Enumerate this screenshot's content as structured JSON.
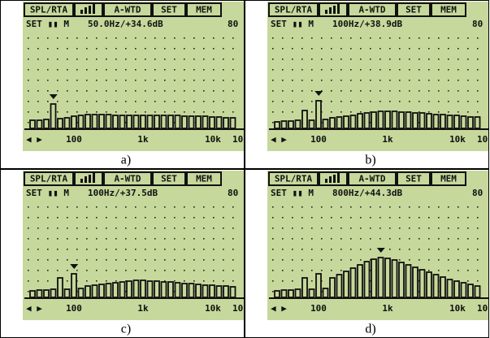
{
  "panels": [
    {
      "caption": "a)",
      "header": [
        "SPL/RTA",
        "A-WTD",
        "SET",
        "MEM"
      ],
      "status": "SET ▮▮ M",
      "readout": "50.0Hz/+34.6dB",
      "range": "80",
      "axis_labels": [
        "◀ ▶",
        "100",
        "1k",
        "10k",
        "10"
      ],
      "bands": [
        1.0,
        1.0,
        1.1,
        3.0,
        1.2,
        1.3,
        1.5,
        1.6,
        1.7,
        1.7,
        1.7,
        1.7,
        1.6,
        1.6,
        1.6,
        1.6,
        1.6,
        1.6,
        1.6,
        1.6,
        1.6,
        1.6,
        1.5,
        1.5,
        1.5,
        1.5,
        1.4,
        1.4,
        1.3,
        1.3
      ],
      "marker_band": 3
    },
    {
      "caption": "b)",
      "header": [
        "SPL/RTA",
        "A-WTD",
        "SET",
        "MEM"
      ],
      "status": "SET ▮▮ M",
      "readout": "100Hz/+38.9dB",
      "range": "80",
      "axis_labels": [
        "◀ ▶",
        "100",
        "1k",
        "10k",
        "10"
      ],
      "bands": [
        0.8,
        0.9,
        0.9,
        1.0,
        2.2,
        1.0,
        3.4,
        1.1,
        1.3,
        1.4,
        1.5,
        1.6,
        1.8,
        1.9,
        2.0,
        2.1,
        2.1,
        2.1,
        2.0,
        2.0,
        1.9,
        1.9,
        1.8,
        1.7,
        1.7,
        1.6,
        1.6,
        1.5,
        1.4,
        1.4
      ],
      "marker_band": 6
    },
    {
      "caption": "c)",
      "header": [
        "SPL/RTA",
        "A-WTD",
        "SET",
        "MEM"
      ],
      "status": "SET ▮▮ M",
      "readout": "100Hz/+37.5dB",
      "range": "80",
      "axis_labels": [
        "◀ ▶",
        "100",
        "1k",
        "10k",
        "10"
      ],
      "bands": [
        0.8,
        0.9,
        0.9,
        1.0,
        2.4,
        1.0,
        2.9,
        1.1,
        1.4,
        1.5,
        1.6,
        1.7,
        1.8,
        1.9,
        2.0,
        2.1,
        2.1,
        2.0,
        2.0,
        1.9,
        1.9,
        1.8,
        1.7,
        1.7,
        1.6,
        1.5,
        1.5,
        1.4,
        1.4,
        1.3
      ],
      "marker_band": 6
    },
    {
      "caption": "d)",
      "header": [
        "SPL/RTA",
        "A-WTD",
        "SET",
        "MEM"
      ],
      "status": "SET ▮▮ M",
      "readout": "800Hz/+44.3dB",
      "range": "80",
      "axis_labels": [
        "◀ ▶",
        "100",
        "1k",
        "10k",
        "10"
      ],
      "bands": [
        0.8,
        0.9,
        0.9,
        1.0,
        2.4,
        1.0,
        2.9,
        1.1,
        2.4,
        2.8,
        3.2,
        3.6,
        4.0,
        4.4,
        4.7,
        4.9,
        4.8,
        4.6,
        4.3,
        4.0,
        3.7,
        3.4,
        3.1,
        2.8,
        2.5,
        2.2,
        2.0,
        1.8,
        1.6,
        1.4
      ],
      "marker_band": 15
    }
  ]
}
